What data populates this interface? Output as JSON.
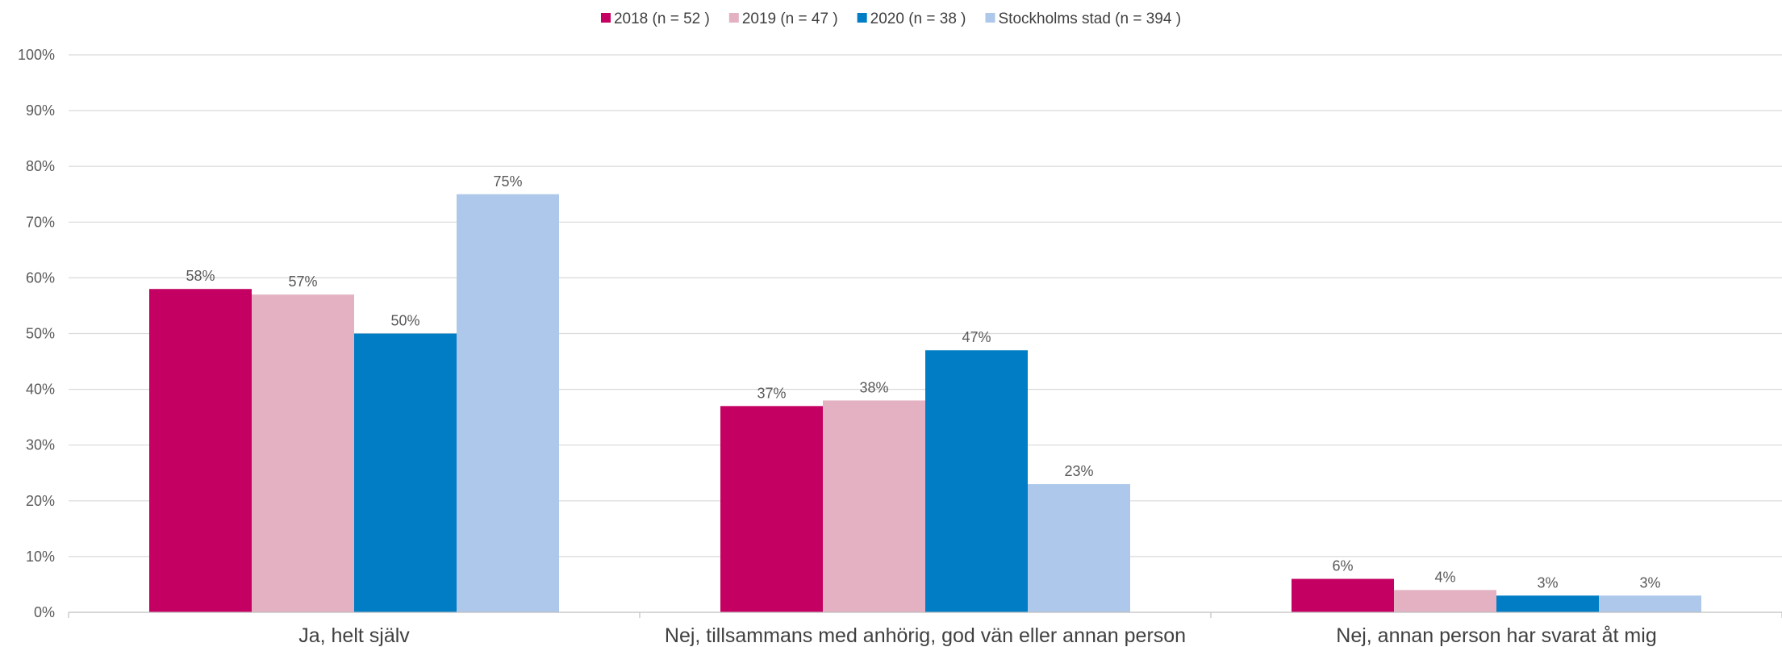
{
  "chart_data": {
    "type": "bar",
    "categories": [
      "Ja, helt själv",
      "Nej, tillsammans med anhörig, god vän eller annan person",
      "Nej, annan person har svarat åt mig"
    ],
    "series": [
      {
        "name": "2018 (n = 52 )",
        "color": "#c40062",
        "values": [
          58,
          37,
          6
        ],
        "labels": [
          "58%",
          "37%",
          "6%"
        ]
      },
      {
        "name": "2019 (n = 47 )",
        "color": "#e3b1c2",
        "values": [
          57,
          38,
          4
        ],
        "labels": [
          "57%",
          "38%",
          "4%"
        ]
      },
      {
        "name": "2020 (n = 38 )",
        "color": "#007dc4",
        "values": [
          50,
          47,
          3
        ],
        "labels": [
          "50%",
          "47%",
          "3%"
        ]
      },
      {
        "name": "Stockholms stad (n = 394 )",
        "color": "#adc8ea",
        "values": [
          75,
          23,
          3
        ],
        "labels": [
          "75%",
          "23%",
          "3%"
        ]
      }
    ],
    "yticks": [
      "0%",
      "10%",
      "20%",
      "30%",
      "40%",
      "50%",
      "60%",
      "70%",
      "80%",
      "90%",
      "100%"
    ],
    "ylim": [
      0,
      100
    ],
    "title": "",
    "xlabel": "",
    "ylabel": "",
    "grid": true,
    "legend": "top-center"
  }
}
